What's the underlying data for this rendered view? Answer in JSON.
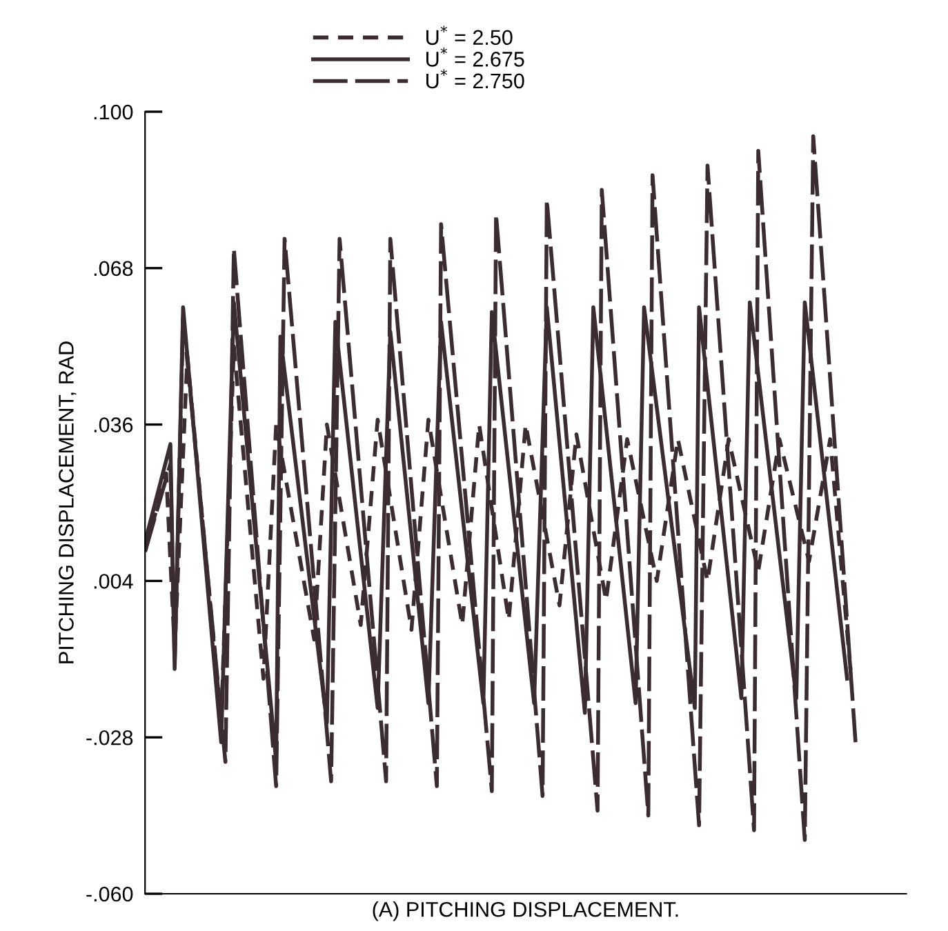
{
  "chart_data": {
    "type": "line",
    "xlabel": "(A) PITCHING DISPLACEMENT.",
    "ylabel": "PITCHING DISPLACEMENT, RAD",
    "categories": [
      null,
      null,
      null,
      null,
      null,
      null,
      null,
      null,
      null,
      null,
      null,
      null,
      null,
      null,
      null,
      null,
      null,
      null,
      null,
      null,
      null,
      null,
      null,
      null,
      null,
      null,
      null,
      null,
      null,
      null,
      null,
      null,
      null,
      null,
      null,
      null,
      null,
      null,
      null,
      null,
      null,
      null,
      null,
      null,
      null,
      null,
      null,
      null,
      null,
      null,
      null,
      null,
      null,
      null,
      null,
      null,
      null,
      null,
      null,
      null,
      null,
      null,
      null,
      null,
      null,
      null,
      null,
      null,
      null,
      null,
      null,
      null,
      null,
      null,
      null,
      null,
      null,
      null,
      null,
      null,
      null,
      null,
      null,
      null,
      null,
      null,
      null,
      null,
      null,
      null,
      null,
      null,
      null,
      null,
      null,
      null,
      null,
      null,
      null,
      null,
      null,
      null,
      null,
      null,
      null,
      null,
      null,
      null,
      null,
      null,
      null,
      null,
      null,
      null,
      null,
      null,
      null,
      null,
      null,
      null,
      null,
      null,
      null,
      null,
      null,
      null,
      null,
      null,
      null,
      null,
      null,
      null,
      null,
      null,
      null,
      null,
      null,
      null,
      null,
      null,
      null,
      null,
      null,
      null,
      null,
      null,
      null,
      null,
      null,
      null,
      null,
      null,
      null,
      null,
      null,
      null,
      null,
      null,
      null,
      null,
      null,
      null,
      null,
      null,
      null,
      null,
      null,
      null,
      null,
      null,
      null,
      null,
      null,
      null,
      null,
      null,
      null,
      null,
      null,
      null,
      null
    ],
    "ylim": [
      -0.06,
      0.1
    ],
    "yticks": [
      {
        "value": -0.06,
        "label": "-.060"
      },
      {
        "value": -0.028,
        "label": "-.028"
      },
      {
        "value": 0.004,
        "label": ".004"
      },
      {
        "value": 0.036,
        "label": ".036"
      },
      {
        "value": 0.068,
        "label": ".068"
      },
      {
        "value": 0.1,
        "label": ".100"
      }
    ],
    "grid": false,
    "legend": "top",
    "marker": "none",
    "series": [
      {
        "name": "U$^{*}$ = 2.50",
        "color": "#3a2c30",
        "line_style": "dashed",
        "values": [
          0.01,
          null,
          null,
          null,
          null,
          0.026,
          null,
          -0.01,
          null,
          null,
          0.05,
          null,
          null,
          null,
          null,
          null,
          null,
          null,
          -0.025,
          null,
          null,
          0.052,
          null,
          null,
          null,
          null,
          null,
          null,
          -0.016,
          null,
          null,
          0.036,
          null,
          null,
          null,
          null,
          null,
          null,
          null,
          null,
          -0.008,
          null,
          null,
          0.036,
          null,
          null,
          null,
          null,
          null,
          null,
          null,
          -0.005,
          null,
          null,
          null,
          0.037,
          null,
          null,
          null,
          null,
          null,
          null,
          null,
          -0.006,
          null,
          null,
          null,
          0.037,
          null,
          null,
          null,
          null,
          null,
          null,
          null,
          -0.005,
          null,
          null,
          null,
          0.036,
          null,
          null,
          null,
          null,
          null,
          null,
          -0.004,
          null,
          null,
          null,
          0.036,
          null,
          null,
          null,
          null,
          null,
          null,
          null,
          -0.001,
          null,
          null,
          null,
          0.034,
          null,
          null,
          null,
          null,
          null,
          null,
          0.0,
          null,
          null,
          null,
          null,
          0.033,
          null,
          null,
          null,
          null,
          null,
          null,
          0.004,
          null,
          null,
          null,
          null,
          0.033,
          null,
          null,
          null,
          null,
          null,
          null,
          0.004,
          null,
          null,
          null,
          null,
          0.033,
          null,
          null,
          null,
          null,
          null,
          null,
          0.006,
          null,
          null,
          null,
          null,
          0.033,
          null,
          null,
          null,
          null,
          null,
          null,
          0.008,
          null,
          null,
          null,
          null,
          0.033,
          null,
          null,
          null,
          null,
          -0.016,
          null,
          null,
          null,
          null,
          null,
          null,
          null,
          null,
          null,
          null,
          null,
          null,
          null
        ]
      },
      {
        "name": "U$^{*}$ = 2.675",
        "color": "#3a2c30",
        "line_style": "solid",
        "values": [
          0.012,
          null,
          null,
          null,
          null,
          null,
          0.032,
          -0.014,
          null,
          0.06,
          null,
          null,
          null,
          null,
          null,
          null,
          null,
          null,
          -0.029,
          null,
          null,
          0.061,
          null,
          null,
          null,
          null,
          null,
          null,
          null,
          null,
          null,
          -0.033,
          0.054,
          null,
          null,
          null,
          null,
          null,
          null,
          null,
          null,
          null,
          null,
          -0.025,
          null,
          0.057,
          null,
          null,
          null,
          null,
          null,
          null,
          null,
          null,
          null,
          -0.022,
          null,
          null,
          0.055,
          null,
          null,
          null,
          null,
          null,
          null,
          null,
          null,
          -0.021,
          null,
          null,
          0.057,
          null,
          null,
          null,
          null,
          null,
          null,
          null,
          null,
          null,
          -0.021,
          null,
          0.059,
          null,
          null,
          null,
          null,
          null,
          null,
          null,
          null,
          null,
          -0.021,
          null,
          null,
          0.06,
          null,
          null,
          null,
          null,
          null,
          null,
          null,
          null,
          -0.023,
          null,
          0.06,
          null,
          null,
          null,
          null,
          null,
          null,
          null,
          null,
          null,
          -0.021,
          null,
          0.06,
          null,
          null,
          null,
          null,
          null,
          null,
          null,
          null,
          null,
          null,
          null,
          -0.022,
          0.06,
          null,
          null,
          null,
          null,
          null,
          null,
          null,
          null,
          null,
          -0.02,
          null,
          0.061,
          null,
          null,
          null,
          null,
          null,
          null,
          null,
          null,
          null,
          null,
          -0.02,
          null,
          0.061,
          null,
          null,
          null,
          null,
          null,
          null,
          null,
          null,
          null,
          -0.016,
          null,
          null,
          null,
          null,
          null,
          null,
          null,
          null,
          null,
          null,
          null,
          null,
          null,
          null
        ]
      },
      {
        "name": "U$^{*}$ = 2.750",
        "color": "#3a2c30",
        "line_style": "longdash",
        "values": [
          0.01,
          null,
          null,
          null,
          null,
          null,
          0.028,
          -0.013,
          null,
          0.058,
          null,
          null,
          null,
          null,
          null,
          null,
          null,
          null,
          null,
          -0.033,
          null,
          0.072,
          null,
          null,
          null,
          null,
          null,
          null,
          null,
          null,
          null,
          -0.038,
          null,
          0.074,
          null,
          null,
          null,
          null,
          null,
          null,
          null,
          null,
          null,
          null,
          -0.037,
          null,
          0.074,
          null,
          null,
          null,
          null,
          null,
          null,
          null,
          null,
          null,
          null,
          -0.037,
          0.074,
          null,
          null,
          null,
          null,
          null,
          null,
          null,
          null,
          null,
          null,
          -0.038,
          0.077,
          null,
          null,
          null,
          null,
          null,
          null,
          null,
          null,
          null,
          null,
          null,
          -0.039,
          0.079,
          null,
          null,
          null,
          null,
          null,
          null,
          null,
          null,
          null,
          null,
          -0.04,
          0.082,
          null,
          null,
          null,
          null,
          null,
          null,
          null,
          null,
          null,
          null,
          null,
          -0.043,
          0.084,
          null,
          null,
          null,
          null,
          null,
          null,
          null,
          null,
          null,
          null,
          -0.044,
          0.087,
          null,
          null,
          null,
          null,
          null,
          null,
          null,
          null,
          null,
          null,
          -0.046,
          null,
          0.089,
          null,
          null,
          null,
          null,
          null,
          null,
          null,
          null,
          null,
          null,
          -0.047,
          0.092,
          null,
          null,
          null,
          null,
          null,
          null,
          null,
          null,
          null,
          null,
          -0.049,
          null,
          0.095,
          null,
          null,
          null,
          null,
          null,
          null,
          null,
          null,
          null,
          -0.029,
          null,
          null,
          null,
          null,
          null,
          null,
          null,
          null,
          null,
          null,
          null,
          null
        ]
      }
    ]
  }
}
